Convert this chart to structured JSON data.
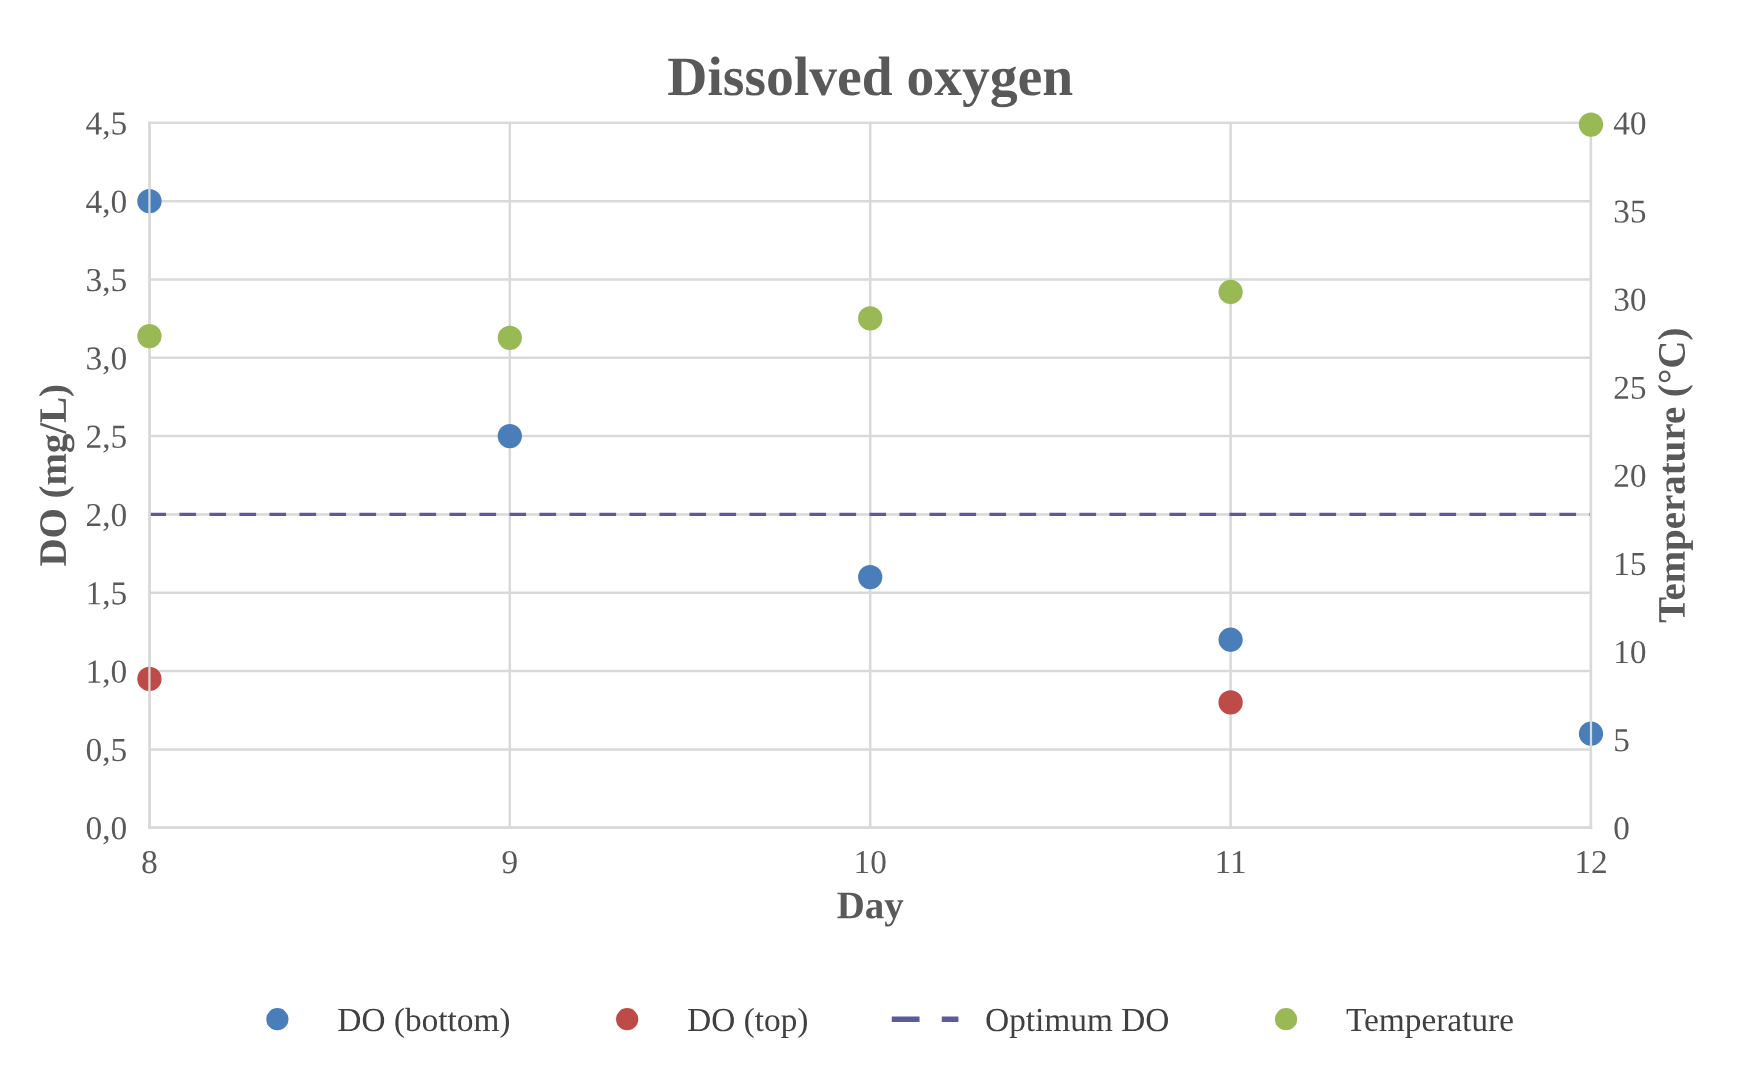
{
  "chart_data": {
    "type": "scatter",
    "title": "Dissolved oxygen",
    "xlabel": "Day",
    "ylabel": "DO (mg/L)",
    "y2label": "Temperature (°C)",
    "x": [
      8,
      9,
      10,
      11,
      12
    ],
    "series": [
      {
        "name": "DO (bottom)",
        "color": "#4a7ebb",
        "values": [
          4.0,
          2.5,
          1.6,
          1.2,
          0.6
        ]
      },
      {
        "name": "DO (top)",
        "color": "#be4b48",
        "values": [
          0.95,
          null,
          null,
          0.8,
          null
        ]
      },
      {
        "name": "Temperature",
        "color": "#98b954",
        "axis": "y2",
        "values": [
          27.9,
          27.8,
          28.9,
          30.4,
          39.9
        ]
      }
    ],
    "ref_lines": [
      {
        "axis": "y",
        "value": 2.0,
        "label": "Optimum DO",
        "color": "#5b5b9a",
        "line_style": "dashed"
      }
    ],
    "xlim": [
      8,
      12
    ],
    "xticks": [
      8,
      9,
      10,
      11,
      12
    ],
    "ylim": [
      0,
      4.5
    ],
    "yticks": [
      {
        "value": 0,
        "label": "0,0"
      },
      {
        "value": 0.5,
        "label": "0,5"
      },
      {
        "value": 1,
        "label": "1,0"
      },
      {
        "value": 1.5,
        "label": "1,5"
      },
      {
        "value": 2,
        "label": "2,0"
      },
      {
        "value": 2.5,
        "label": "2,5"
      },
      {
        "value": 3,
        "label": "3,0"
      },
      {
        "value": 3.5,
        "label": "3,5"
      },
      {
        "value": 4,
        "label": "4,0"
      },
      {
        "value": 4.5,
        "label": "4,5"
      }
    ],
    "y2lim": [
      0,
      40
    ],
    "y2ticks": [
      0,
      5,
      10,
      15,
      20,
      25,
      30,
      35,
      40
    ],
    "grid": true,
    "legend": "bottom",
    "marker": "circle"
  }
}
